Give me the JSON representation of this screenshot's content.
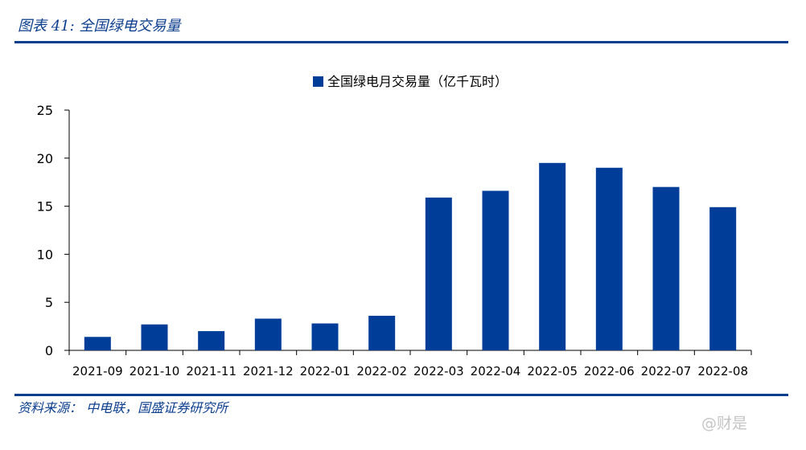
{
  "header": {
    "title": "图表 41:  全国绿电交易量"
  },
  "footer": {
    "source": "资料来源：  中电联，国盛证券研究所",
    "watermark": "@财是"
  },
  "colors": {
    "bar": "#003d99",
    "accent": "#0c3e8f",
    "axis": "#000000"
  },
  "chart_data": {
    "type": "bar",
    "title": "",
    "xlabel": "",
    "ylabel": "",
    "ylim": [
      0,
      25
    ],
    "yticks": [
      0,
      5,
      10,
      15,
      20,
      25
    ],
    "grid": false,
    "legend_position": "top-center",
    "categories": [
      "2021-09",
      "2021-10",
      "2021-11",
      "2021-12",
      "2022-01",
      "2022-02",
      "2022-03",
      "2022-04",
      "2022-05",
      "2022-06",
      "2022-07",
      "2022-08"
    ],
    "series": [
      {
        "name": "全国绿电月交易量（亿千瓦时）",
        "values": [
          1.4,
          2.7,
          2.0,
          3.3,
          2.8,
          3.6,
          15.9,
          16.6,
          19.5,
          19.0,
          17.0,
          14.9
        ]
      }
    ]
  }
}
